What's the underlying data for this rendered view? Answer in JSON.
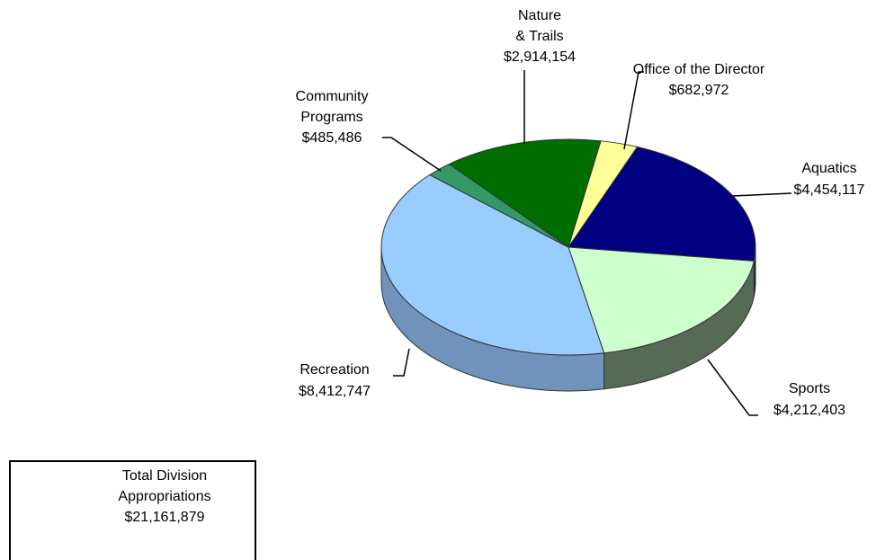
{
  "chart_data": {
    "type": "pie3d",
    "categories": [
      "Nature\n& Trails",
      "Office of the Director",
      "Aquatics",
      "Sports",
      "Recreation",
      "Community\nPrograms"
    ],
    "values": [
      2914154,
      682972,
      4454117,
      4212403,
      8412747,
      485486
    ],
    "value_labels": [
      "$2,914,154",
      "$682,972",
      "$4,454,117",
      "$4,212,403",
      "$8,412,747",
      "$485,486"
    ],
    "colors": [
      "#006e00",
      "#ffff99",
      "#000080",
      "#ccffcc",
      "#99ccff",
      "#339966"
    ],
    "side_colors": [
      "#004a00",
      "#b3b36b",
      "#00005a",
      "#556b55",
      "#6f93bb",
      "#236b47"
    ]
  },
  "total_box": {
    "label": "Total Division\nAppropriations",
    "value_label": "$21,161,879"
  }
}
